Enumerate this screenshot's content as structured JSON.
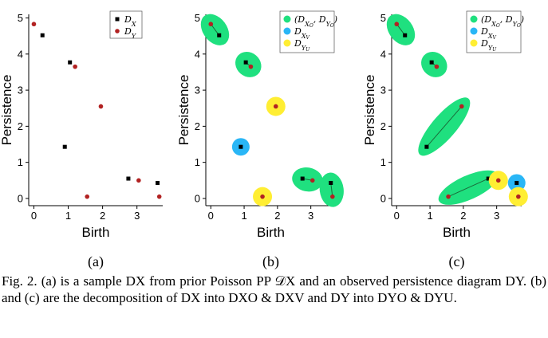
{
  "figure": {
    "subfigure_labels": [
      "(a)",
      "(b)",
      "(c)"
    ],
    "caption": "Fig. 2.  (a) is a sample DX from prior Poisson PP 𝒟X and an observed persistence diagram DY. (b) and (c) are the decomposition of DX into DXO & DXV and DY into DYO & DYU."
  },
  "colors": {
    "dx_points": "#000000",
    "dy_points": "#b22222",
    "observed_group": "#1fe07f",
    "vanishing_group": "#29b6f6",
    "unobserved_group": "#ffee33"
  },
  "chart_data": [
    {
      "type": "scatter",
      "panel": "(a)",
      "xlabel": "Birth",
      "ylabel": "Persistence",
      "xlim": [
        -0.15,
        3.75
      ],
      "ylim": [
        -0.2,
        5.1
      ],
      "xticks": [
        0,
        1,
        2,
        3
      ],
      "yticks": [
        0,
        1,
        2,
        3,
        4,
        5
      ],
      "grid": false,
      "legend_position": "top-right",
      "legend": [
        "DX",
        "DY"
      ],
      "series": [
        {
          "name": "DX",
          "marker": "square",
          "points": [
            [
              0.25,
              4.52
            ],
            [
              1.05,
              3.77
            ],
            [
              0.9,
              1.43
            ],
            [
              2.75,
              0.55
            ],
            [
              3.6,
              0.43
            ]
          ]
        },
        {
          "name": "DY",
          "marker": "circle",
          "points": [
            [
              0.0,
              4.83
            ],
            [
              1.2,
              3.65
            ],
            [
              1.95,
              2.55
            ],
            [
              1.55,
              0.05
            ],
            [
              3.05,
              0.5
            ],
            [
              3.65,
              0.05
            ]
          ]
        }
      ]
    },
    {
      "type": "scatter",
      "panel": "(b)",
      "xlabel": "Birth",
      "ylabel": "Persistence",
      "xlim": [
        -0.15,
        3.75
      ],
      "ylim": [
        -0.2,
        5.1
      ],
      "xticks": [
        0,
        1,
        2,
        3
      ],
      "yticks": [
        0,
        1,
        2,
        3,
        4,
        5
      ],
      "grid": false,
      "legend_position": "top-right",
      "legend": [
        "(DXO, DYO)",
        "DXV",
        "DYU"
      ],
      "groups": [
        {
          "kind": "observed",
          "a": [
            0.25,
            4.52
          ],
          "b": [
            0.0,
            4.83
          ]
        },
        {
          "kind": "observed",
          "a": [
            1.05,
            3.77
          ],
          "b": [
            1.2,
            3.65
          ]
        },
        {
          "kind": "observed",
          "a": [
            2.75,
            0.55
          ],
          "b": [
            3.05,
            0.5
          ]
        },
        {
          "kind": "observed",
          "a": [
            3.6,
            0.43
          ],
          "b": [
            3.65,
            0.05
          ]
        },
        {
          "kind": "vanishing",
          "a": [
            0.9,
            1.43
          ]
        },
        {
          "kind": "unobserved",
          "a": [
            1.95,
            2.55
          ]
        },
        {
          "kind": "unobserved",
          "a": [
            1.55,
            0.05
          ]
        }
      ]
    },
    {
      "type": "scatter",
      "panel": "(c)",
      "xlabel": "Birth",
      "ylabel": "Persistence",
      "xlim": [
        -0.15,
        3.75
      ],
      "ylim": [
        -0.2,
        5.1
      ],
      "xticks": [
        0,
        1,
        2,
        3
      ],
      "yticks": [
        0,
        1,
        2,
        3,
        4,
        5
      ],
      "grid": false,
      "legend_position": "top-right",
      "legend": [
        "(DXO, DYO)",
        "DXV",
        "DYU"
      ],
      "groups": [
        {
          "kind": "observed",
          "a": [
            0.25,
            4.52
          ],
          "b": [
            0.0,
            4.83
          ]
        },
        {
          "kind": "observed",
          "a": [
            1.05,
            3.77
          ],
          "b": [
            1.2,
            3.65
          ]
        },
        {
          "kind": "observed",
          "a": [
            0.9,
            1.43
          ],
          "b": [
            1.95,
            2.55
          ]
        },
        {
          "kind": "observed",
          "a": [
            2.75,
            0.55
          ],
          "b": [
            1.55,
            0.05
          ]
        },
        {
          "kind": "vanishing",
          "a": [
            3.6,
            0.43
          ]
        },
        {
          "kind": "unobserved",
          "a": [
            3.05,
            0.5
          ]
        },
        {
          "kind": "unobserved",
          "a": [
            3.65,
            0.05
          ]
        }
      ]
    }
  ]
}
